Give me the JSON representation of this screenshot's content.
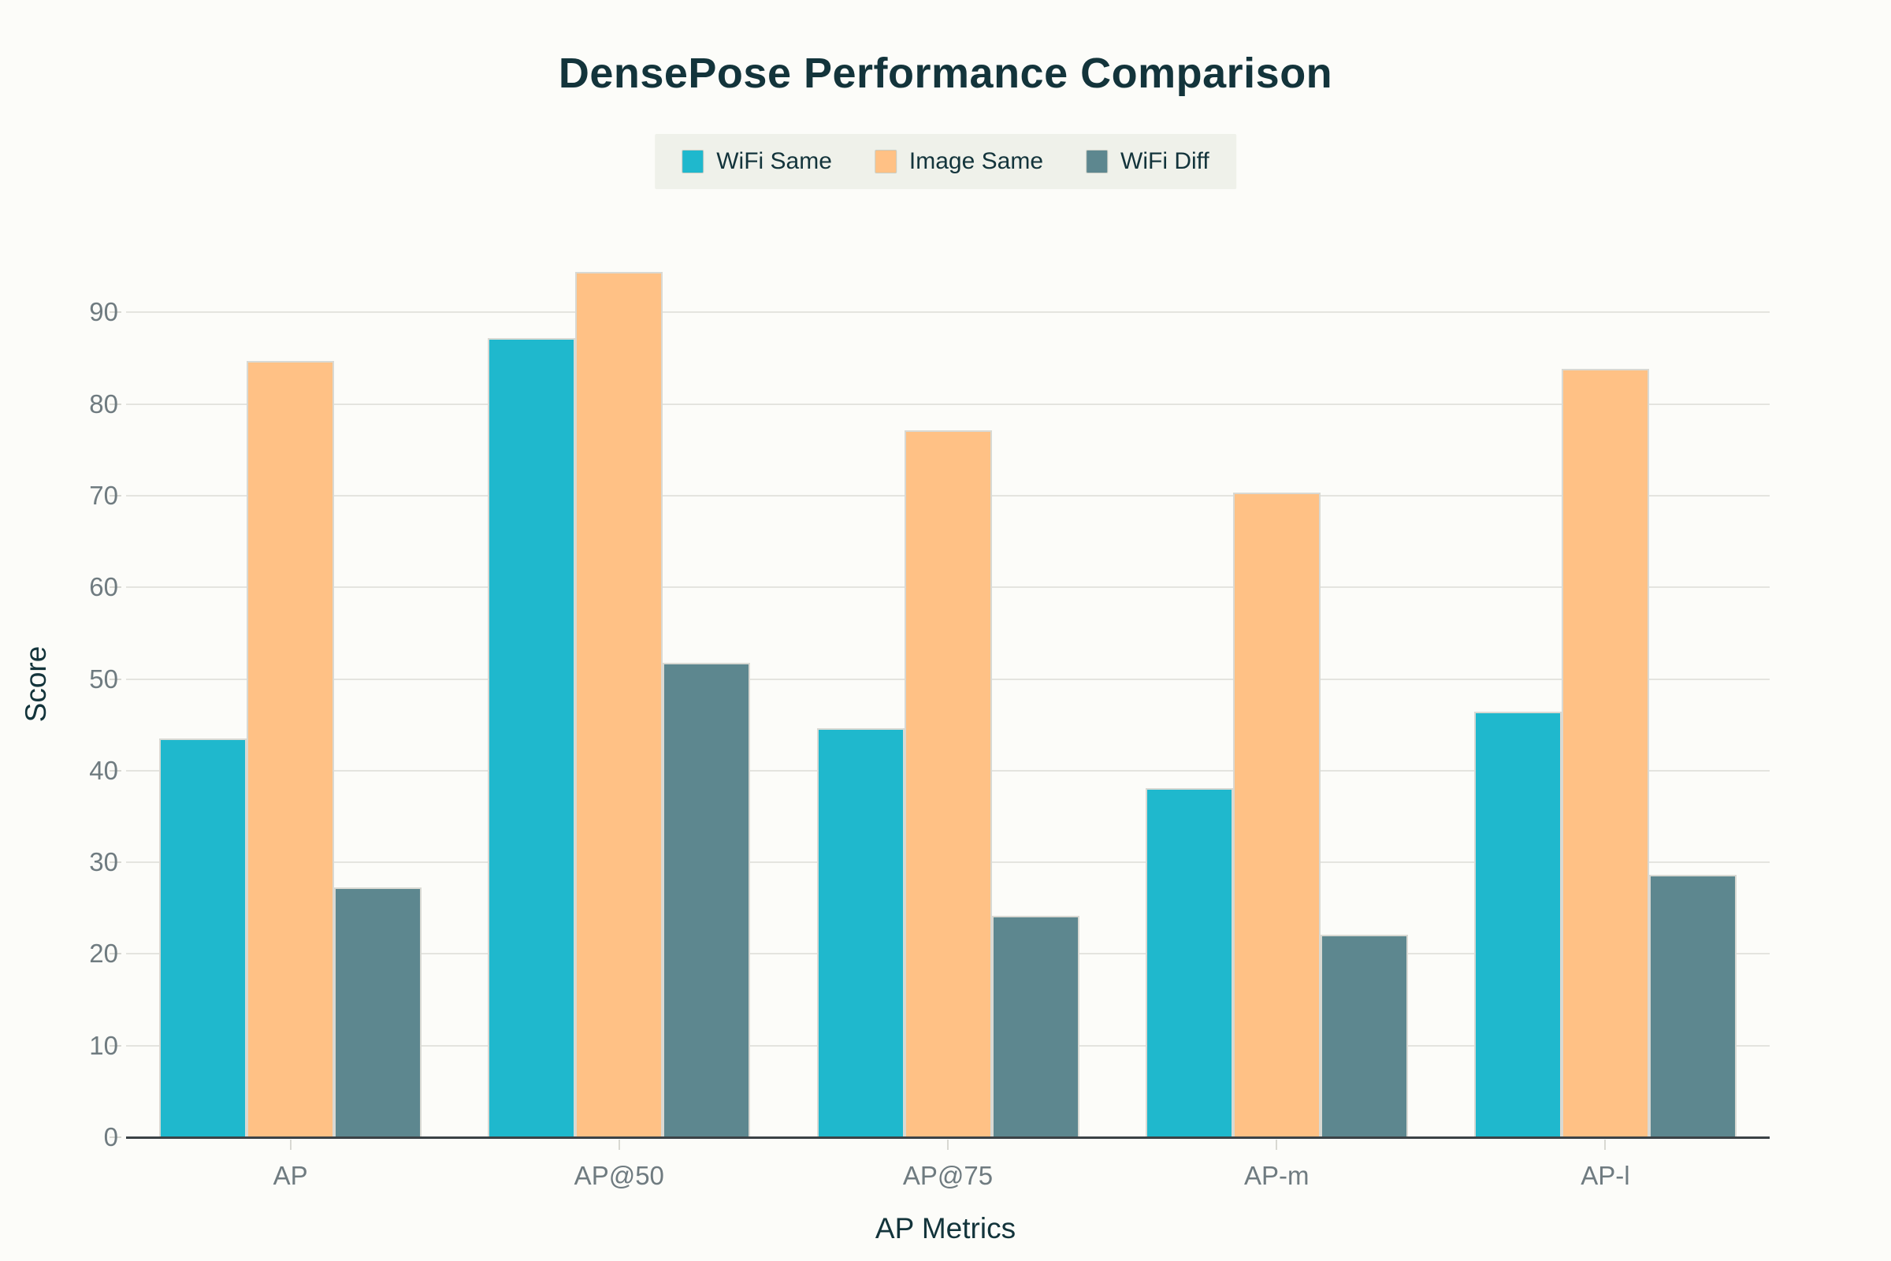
{
  "chart_data": {
    "type": "bar",
    "title": "DensePose Performance Comparison",
    "xlabel": "AP Metrics",
    "ylabel": "Score",
    "categories": [
      "AP",
      "AP@50",
      "AP@75",
      "AP-m",
      "AP-l"
    ],
    "series": [
      {
        "name": "WiFi Same",
        "color": "#1FB8CD",
        "values": [
          43.5,
          87.2,
          44.6,
          38.1,
          46.4
        ]
      },
      {
        "name": "Image Same",
        "color": "#FFC185",
        "values": [
          84.7,
          94.4,
          77.1,
          70.3,
          83.8
        ]
      },
      {
        "name": "WiFi Diff",
        "color": "#5D878F",
        "values": [
          27.3,
          51.8,
          24.2,
          22.1,
          28.6
        ]
      }
    ],
    "ylim": [
      0,
      104
    ],
    "yticks": [
      0,
      10,
      20,
      30,
      40,
      50,
      60,
      70,
      80,
      90
    ],
    "grid": true,
    "legend_position": "top-center"
  },
  "style": {
    "background": "#FCFCF9",
    "title_color": "#13343B",
    "axis_title_color": "#13343B",
    "tick_label_color": "#6F7B80",
    "grid_color": "#E4E4DF",
    "axis_line_color": "#3B4246",
    "tick_mark_color": "#D8D8D2",
    "legend_bg": "#EFF1EA",
    "legend_text_color": "#13343B",
    "legend_swatch_border": "#C9CDC4",
    "bar_border": "#D9D9D3"
  }
}
